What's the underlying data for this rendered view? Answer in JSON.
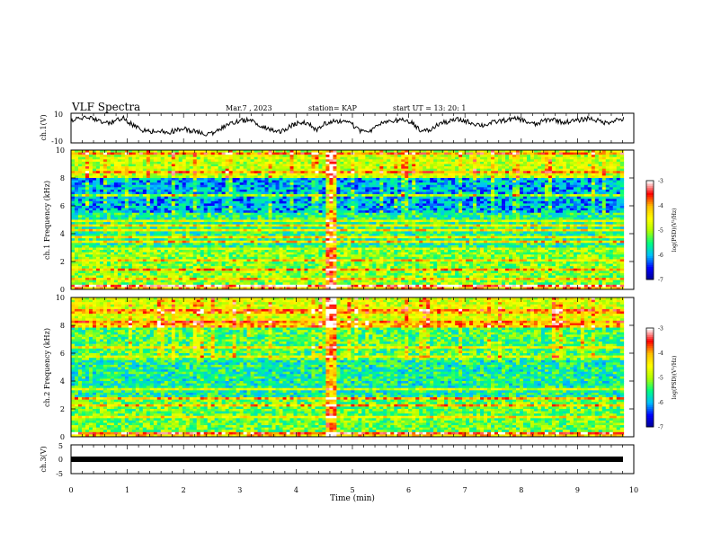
{
  "header": {
    "title": "VLF Spectra",
    "date": "Mar.7 , 2023",
    "station": "station= KAP",
    "start": "start UT = 13: 20: 1"
  },
  "chart_data": [
    {
      "type": "line",
      "name": "ch1-waveform",
      "ylabel": "ch.1(V)",
      "ylim": [
        -10,
        10
      ],
      "yticks": [
        "10",
        "-10"
      ],
      "xlim": [
        0,
        10
      ],
      "trace": [
        5.5,
        6.2,
        7.1,
        5.8,
        3.2,
        4.6,
        6.8,
        2.1,
        -1.5,
        -2.4,
        -1.8,
        -2.9,
        -1.6,
        -0.8,
        -2.2,
        -3.4,
        -4.1,
        -0.5,
        2.8,
        4.4,
        5.3,
        3.9,
        0.6,
        -1.9,
        -2.3,
        1.4,
        3.8,
        3.1,
        -1.2,
        3.2,
        5.1,
        4.2,
        2.5,
        -1.8,
        -2.5,
        2.4,
        3.8,
        4.9,
        5.6,
        3.0,
        -2.2,
        -1.4,
        3.1,
        4.2,
        5.8,
        4.7,
        2.9,
        1.8,
        3.6,
        4.9,
        5.7,
        6.4,
        4.1,
        2.3,
        5.2,
        6.1,
        3.8,
        4.6,
        5.3,
        6.7,
        5.1,
        3.4,
        5.5,
        6.0
      ]
    },
    {
      "type": "heatmap",
      "name": "ch1-spectrogram",
      "ylabel": "ch.1 Frequency (kHz)",
      "ylim": [
        0,
        10
      ],
      "yticks": [
        "0",
        "2",
        "4",
        "6",
        "8",
        "10"
      ],
      "xlim": [
        0,
        10
      ],
      "colorbar": {
        "label": "log(PSD)(V²/Hz)",
        "range": [
          -7,
          -3
        ],
        "ticks": [
          "-3",
          "-4",
          "-5",
          "-6",
          "-7"
        ]
      }
    },
    {
      "type": "heatmap",
      "name": "ch2-spectrogram",
      "ylabel": "ch.2 Frequency (kHz)",
      "ylim": [
        0,
        10
      ],
      "yticks": [
        "0",
        "2",
        "4",
        "6",
        "8",
        "10"
      ],
      "xlim": [
        0,
        10
      ],
      "colorbar": {
        "label": "log(PSD)(V²/Hz)",
        "range": [
          -7,
          -3
        ],
        "ticks": [
          "-3",
          "-4",
          "-5",
          "-6",
          "-7"
        ]
      }
    },
    {
      "type": "line",
      "name": "ch3-waveform",
      "ylabel": "ch.3(V)",
      "ylim": [
        -5,
        5
      ],
      "yticks": [
        "5",
        "0",
        "-5"
      ],
      "xlim": [
        0,
        10
      ],
      "constant_value": 0
    }
  ],
  "x_axis": {
    "label": "Time (min)",
    "ticks": [
      "0",
      "1",
      "2",
      "3",
      "4",
      "5",
      "6",
      "7",
      "8",
      "9",
      "10"
    ]
  },
  "colors": {
    "colormap": [
      "#00008f",
      "#0000ff",
      "#00bfff",
      "#00ff80",
      "#b0ff00",
      "#ffff00",
      "#ffbf00",
      "#ff0000",
      "#ffffff"
    ],
    "line": "#000000"
  }
}
